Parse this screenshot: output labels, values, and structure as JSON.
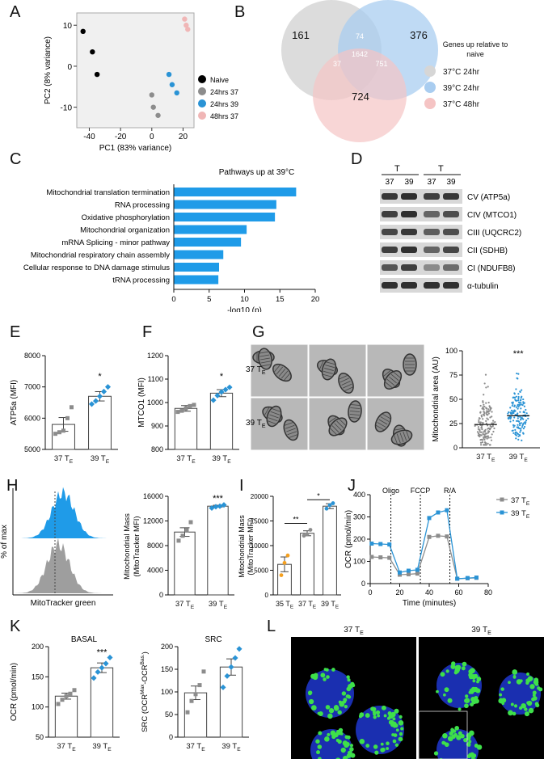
{
  "panels": {
    "A": "A",
    "B": "B",
    "C": "C",
    "D": "D",
    "E": "E",
    "F": "F",
    "G": "G",
    "H": "H",
    "I": "I",
    "J": "J",
    "K": "K",
    "L": "L"
  },
  "pca": {
    "xlabel": "PC1 (83% variance)",
    "ylabel": "PC2 (8% variance)",
    "xticks": [
      -40,
      -20,
      0,
      20
    ],
    "yticks": [
      10,
      0,
      -10
    ],
    "xlim": [
      -48,
      27
    ],
    "ylim": [
      -15,
      13
    ],
    "legend": [
      "Naive",
      "24hrs 37",
      "24hrs 39",
      "48hrs 37"
    ],
    "colors": [
      "#000000",
      "#8c8c8c",
      "#2a93d5",
      "#f0b6b6"
    ],
    "points": [
      [
        [
          -44,
          8.5
        ],
        [
          -38,
          3.5
        ],
        [
          -35,
          -2
        ]
      ],
      [
        [
          0,
          -7
        ],
        [
          1,
          -10
        ],
        [
          4,
          -12
        ]
      ],
      [
        [
          11,
          -2
        ],
        [
          13,
          -4.5
        ],
        [
          16,
          -6.5
        ]
      ],
      [
        [
          21,
          11.5
        ],
        [
          22,
          10
        ],
        [
          23,
          9
        ]
      ]
    ]
  },
  "venn": {
    "counts": {
      "only37": "161",
      "only39": "376",
      "only48": "724",
      "ab": "74",
      "abc": "1642",
      "ac": "37",
      "bc": "751"
    },
    "legend_title_1": "Genes up relative to",
    "legend_title_2": "naive",
    "legend": [
      "37°C 24hr",
      "39°C 24hr",
      "37°C 48hr"
    ],
    "colors": [
      "#d6d6d6",
      "#a9cdf0",
      "#f5c4c4"
    ]
  },
  "pathways": {
    "title": "Pathways up at 39°C",
    "xlabel": "-log10 (p)",
    "xticks": [
      0,
      5,
      10,
      15,
      20
    ],
    "categories": [
      "Mitochondrial translation termination",
      "RNA processing",
      "Oxidative phosphorylation",
      "Mitochondrial organization",
      "mRNA Splicing - minor pathway",
      "Mitochondrial respiratory chain assembly",
      "Cellular response to DNA damage stimulus",
      "tRNA processing"
    ],
    "values": [
      17.3,
      14.5,
      14.3,
      10.3,
      9.5,
      7.0,
      6.4,
      6.3
    ],
    "xlim": [
      0,
      20
    ],
    "color": "#1f9be8"
  },
  "blot": {
    "t_main": "T",
    "t_sub": "E",
    "lanes": [
      "37",
      "39",
      "37",
      "39"
    ],
    "bands": [
      "CV (ATP5a)",
      "CIV (MTCO1)",
      "CIII (UQCRC2)",
      "CII (SDHB)",
      "CI (NDUFB8)",
      "α-tubulin"
    ]
  },
  "panelE": {
    "ylabel": "ATP5a (MFI)",
    "yticks": [
      5000,
      6000,
      7000,
      8000
    ],
    "ylim": [
      5000,
      8000
    ],
    "categories": [
      "37 T",
      "39 T"
    ],
    "sub": "E",
    "means": [
      5800,
      6700
    ],
    "sem": [
      220,
      150
    ],
    "points": [
      [
        5500,
        5550,
        5600,
        6000,
        6350
      ],
      [
        6450,
        6550,
        6700,
        6850,
        7000
      ]
    ],
    "sig": "*",
    "colors": [
      "#8c8c8c",
      "#2a93d5"
    ]
  },
  "panelF": {
    "ylabel": "MTCO1 (MFI)",
    "yticks": [
      800,
      900,
      1000,
      1100,
      1200
    ],
    "ylim": [
      800,
      1200
    ],
    "categories": [
      "37 T",
      "39 T"
    ],
    "sub": "E",
    "means": [
      975,
      1040
    ],
    "sem": [
      12,
      15
    ],
    "points": [
      [
        960,
        965,
        975,
        985,
        990
      ],
      [
        1010,
        1030,
        1045,
        1055,
        1065
      ]
    ],
    "sig": "*",
    "colors": [
      "#8c8c8c",
      "#2a93d5"
    ]
  },
  "panelG": {
    "ylabel": "Mitochondrial area (AU)",
    "yticks": [
      0,
      25,
      50,
      75,
      100
    ],
    "ylim": [
      0,
      100
    ],
    "categories": [
      "37 T",
      "39 T"
    ],
    "sub": "E",
    "medians": [
      24,
      33
    ],
    "sig": "***",
    "row_labels": [
      "37 T",
      "39 T"
    ],
    "colors": [
      "#8c8c8c",
      "#2a93d5"
    ]
  },
  "panelH": {
    "hist_ylabel": "% of max",
    "hist_xlabel": "MitoTracker green",
    "ylabel1": "Mitochondrial Mass",
    "ylabel2": "(MitoTracker MFI)",
    "yticks": [
      0,
      4000,
      8000,
      12000,
      16000
    ],
    "ylim": [
      0,
      16000
    ],
    "categories": [
      "37 T",
      "39 T"
    ],
    "sub": "E",
    "means": [
      10200,
      14400
    ],
    "sem": [
      700,
      150
    ],
    "points": [
      [
        8800,
        9600,
        10500,
        11800
      ],
      [
        14100,
        14300,
        14400,
        14600
      ]
    ],
    "sig": "***",
    "colors": [
      "#8c8c8c",
      "#2a93d5"
    ]
  },
  "panelI": {
    "ylabel1": "Mitochondrial Mass",
    "ylabel2": "(MitoTracker MFI)",
    "yticks": [
      0,
      5000,
      10000,
      15000,
      20000
    ],
    "ylim": [
      0,
      20000
    ],
    "categories": [
      "35 T",
      "37 T",
      "39 T"
    ],
    "sub": "E",
    "means": [
      6200,
      12500,
      18000
    ],
    "sem": [
      1500,
      500,
      500
    ],
    "points": [
      [
        4000,
        6500,
        8000
      ],
      [
        12000,
        12300,
        13200
      ],
      [
        17500,
        18200,
        18600
      ]
    ],
    "sig1": "**",
    "sig2": "*",
    "colors": [
      "#f4a020",
      "#8c8c8c",
      "#2a93d5"
    ]
  },
  "panelJ": {
    "ylabel": "OCR (pmol/min)",
    "xlabel": "Time (minutes)",
    "xticks": [
      0,
      20,
      40,
      60,
      80
    ],
    "yticks": [
      0,
      100,
      200,
      300,
      400
    ],
    "xlim": [
      0,
      80
    ],
    "ylim": [
      0,
      400
    ],
    "annotations": [
      "Oligo",
      "FCCP",
      "R/A"
    ],
    "injections": [
      14,
      34,
      54
    ],
    "legend": [
      "37 T",
      "39 T"
    ],
    "sub": "E",
    "x": [
      1,
      7,
      13,
      20,
      26,
      32,
      40,
      46,
      52,
      59,
      66,
      72
    ],
    "series": [
      {
        "values": [
          120,
          118,
          116,
          40,
          42,
          45,
          210,
          215,
          212,
          22,
          24,
          26
        ],
        "color": "#8c8c8c"
      },
      {
        "values": [
          180,
          178,
          176,
          50,
          58,
          62,
          295,
          320,
          330,
          22,
          25,
          27
        ],
        "color": "#2a93d5"
      }
    ]
  },
  "panelK1": {
    "title": "BASAL",
    "ylabel": "OCR (pmol/min)",
    "yticks": [
      50,
      100,
      150,
      200
    ],
    "ylim": [
      50,
      200
    ],
    "categories": [
      "37 T",
      "39 T"
    ],
    "sub": "E",
    "means": [
      118,
      165
    ],
    "sem": [
      5,
      8
    ],
    "points": [
      [
        105,
        112,
        118,
        122,
        128
      ],
      [
        148,
        158,
        165,
        172,
        182
      ]
    ],
    "sig": "***",
    "colors": [
      "#8c8c8c",
      "#2a93d5"
    ]
  },
  "panelK2": {
    "title": "SRC",
    "ylabel": "SRC (OCR",
    "ylabel_sup1": "Max",
    "ylabel_mid": "-OCR",
    "ylabel_sup2": "Bas.",
    "ylabel_end": ")",
    "yticks": [
      0,
      50,
      100,
      150,
      200
    ],
    "ylim": [
      0,
      200
    ],
    "categories": [
      "37 T",
      "39 T"
    ],
    "sub": "E",
    "means": [
      98,
      155
    ],
    "sem": [
      15,
      18
    ],
    "points": [
      [
        55,
        80,
        95,
        115,
        145
      ],
      [
        110,
        135,
        155,
        175,
        195
      ]
    ],
    "colors": [
      "#8c8c8c",
      "#2a93d5"
    ]
  },
  "panelL": {
    "labels": [
      "37 T",
      "39 T"
    ],
    "sub": "E"
  }
}
